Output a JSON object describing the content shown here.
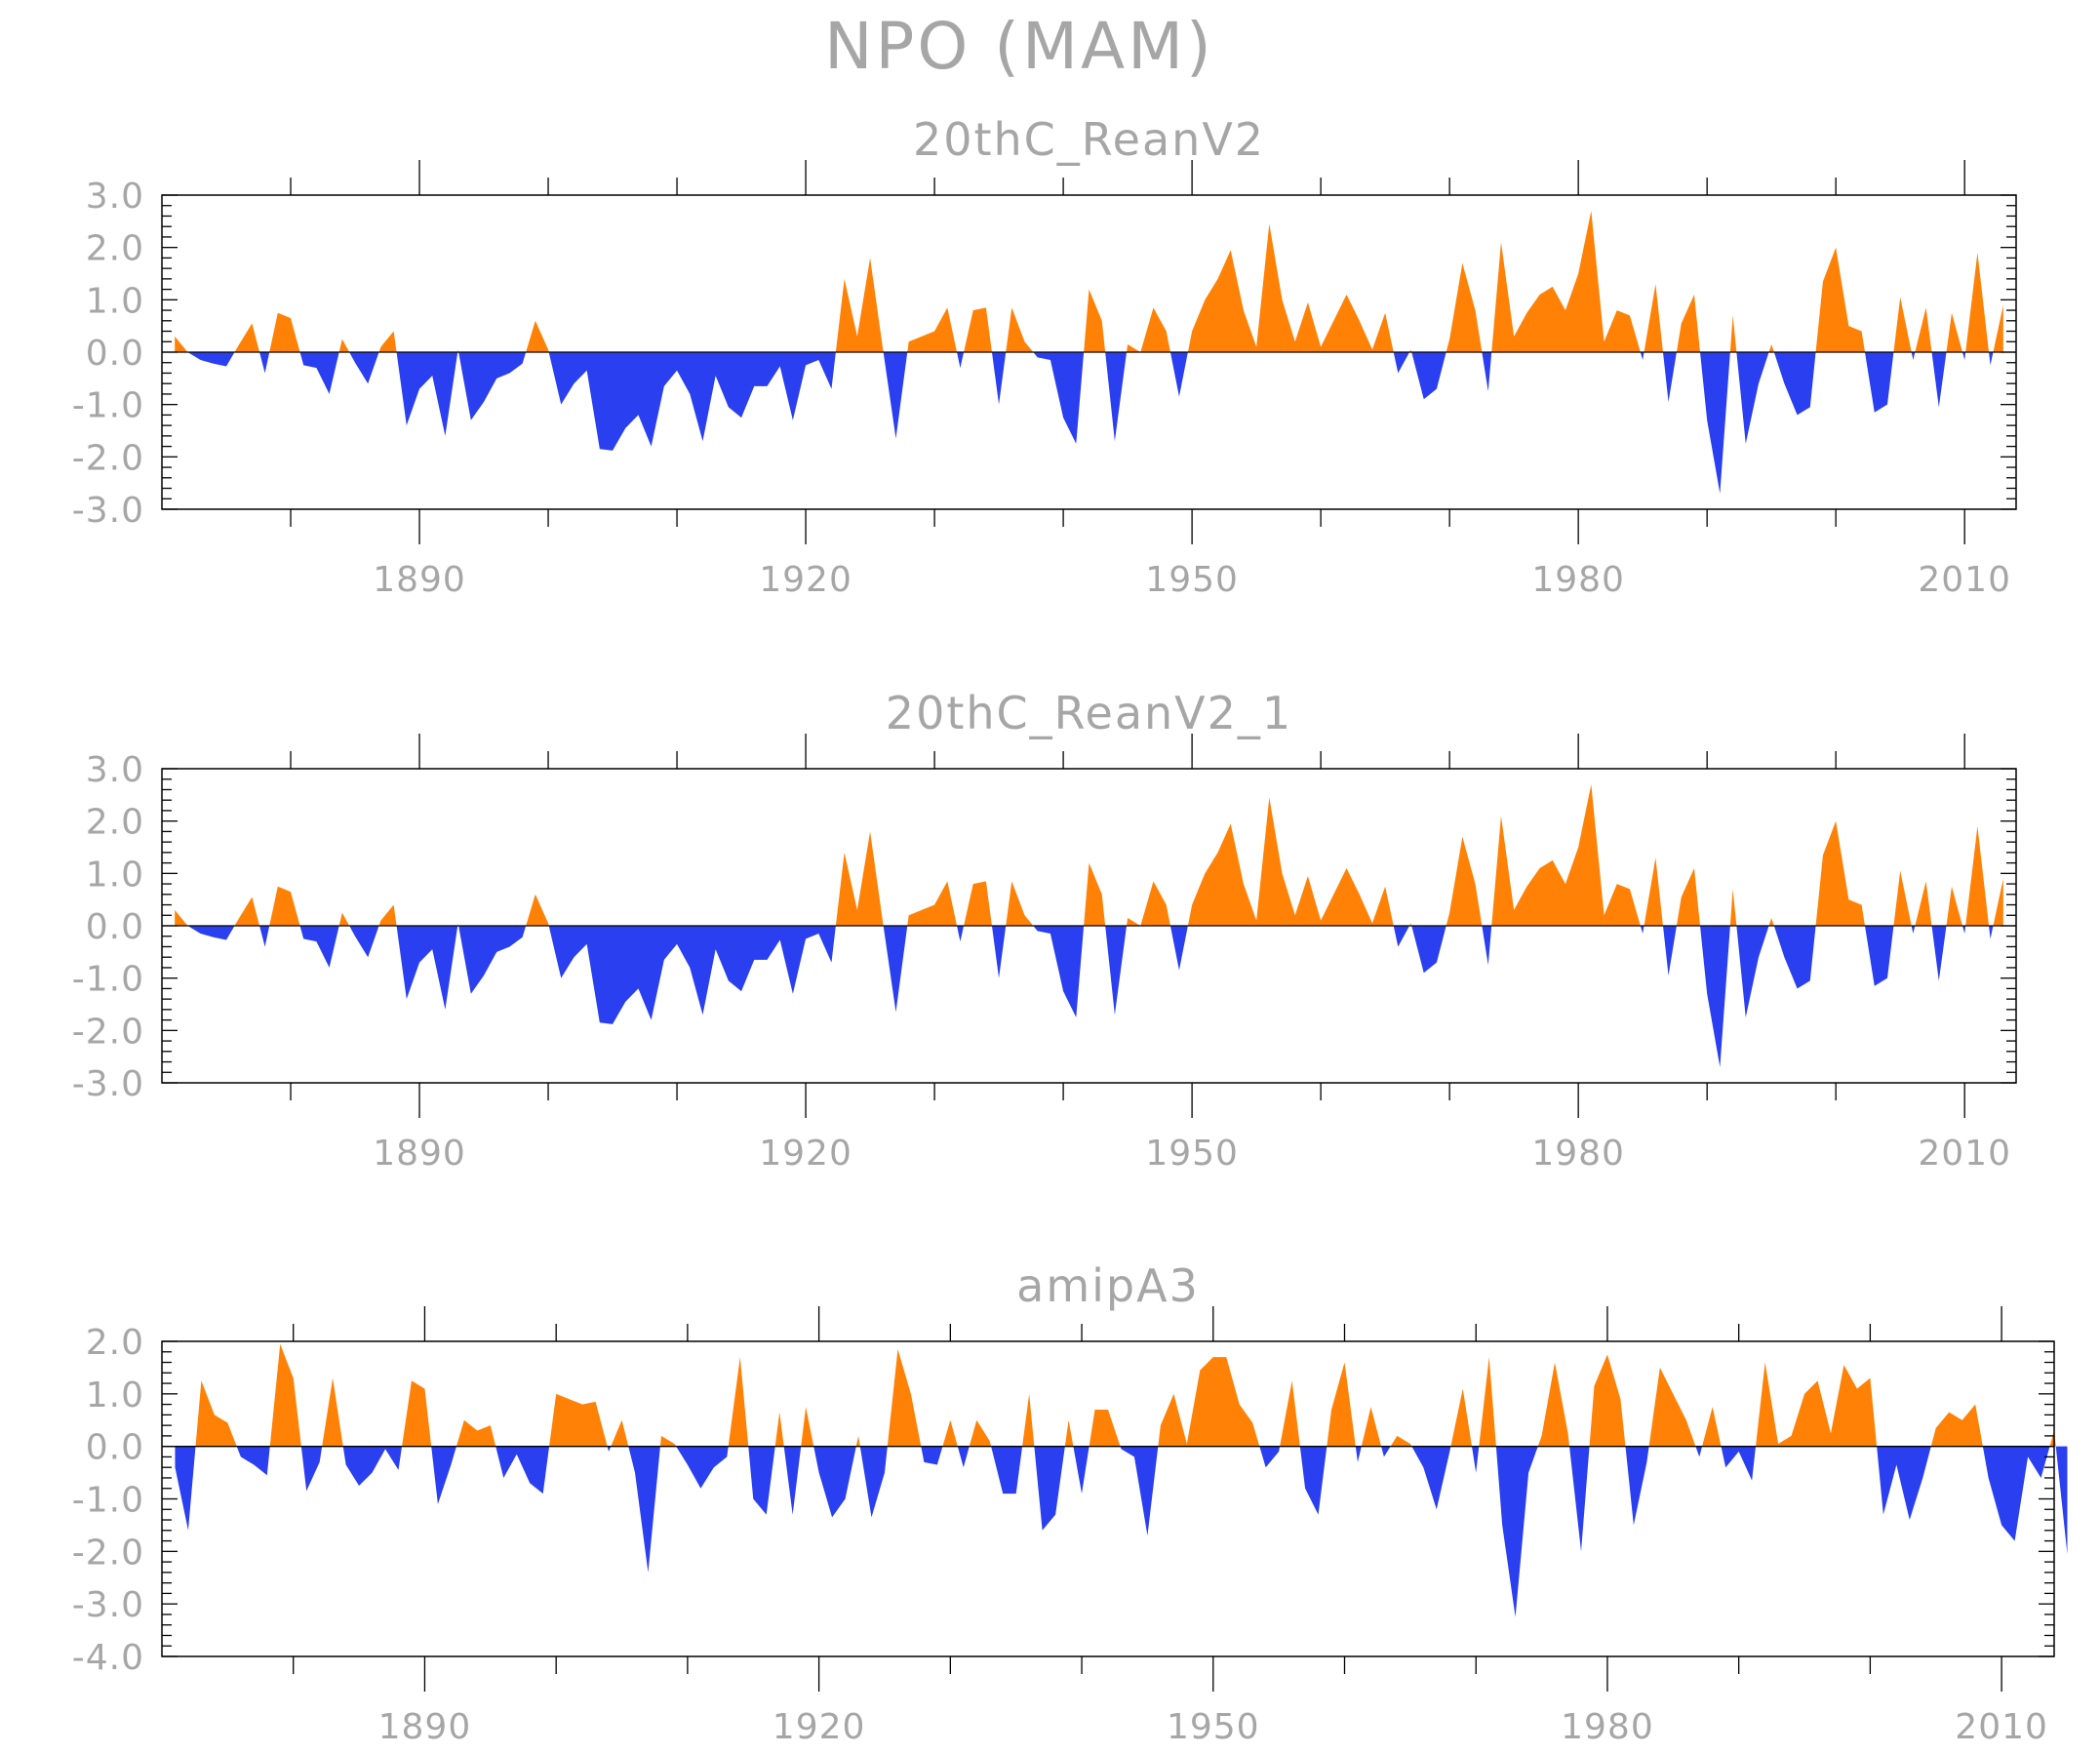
{
  "title": "NPO (MAM)",
  "colors": {
    "positive": "#ff8105",
    "negative": "#2a3ff0",
    "text": "#a6a6a6",
    "axes": "#000000"
  },
  "chart_data": [
    {
      "type": "area",
      "title": "20thC_ReanV2",
      "x_start": 1871,
      "xlim": [
        1870,
        2014
      ],
      "ylim": [
        -3,
        3
      ],
      "yticks": [
        3,
        2,
        1,
        0,
        -1,
        -2,
        -3
      ],
      "ytick_labels": [
        "3.0",
        "2.0",
        "1.0",
        "0.0",
        "-1.0",
        "-2.0",
        "-3.0"
      ],
      "xticks": [
        1890,
        1920,
        1950,
        1980,
        2010
      ],
      "xtick_labels": [
        "1890",
        "1920",
        "1950",
        "1980",
        "2010"
      ],
      "values": [
        0.3,
        0.0,
        -0.15,
        -0.22,
        -0.27,
        0.15,
        0.55,
        -0.4,
        0.75,
        0.65,
        -0.25,
        -0.3,
        -0.8,
        0.25,
        -0.2,
        -0.6,
        0.1,
        0.4,
        -1.4,
        -0.7,
        -0.45,
        -1.6,
        0.05,
        -1.3,
        -0.95,
        -0.5,
        -0.4,
        -0.22,
        0.6,
        0.05,
        -1.0,
        -0.6,
        -0.35,
        -1.85,
        -1.88,
        -1.45,
        -1.2,
        -1.8,
        -0.65,
        -0.35,
        -0.8,
        -1.7,
        -0.45,
        -1.05,
        -1.25,
        -0.65,
        -0.65,
        -0.27,
        -1.3,
        -0.25,
        -0.15,
        -0.7,
        1.4,
        0.3,
        1.8,
        0.05,
        -1.65,
        0.2,
        0.3,
        0.4,
        0.85,
        -0.3,
        0.8,
        0.85,
        -1.0,
        0.85,
        0.2,
        -0.1,
        -0.15,
        -1.25,
        -1.75,
        1.2,
        0.6,
        -1.7,
        0.15,
        0.0,
        0.85,
        0.4,
        -0.85,
        0.4,
        1.0,
        1.4,
        1.95,
        0.8,
        0.1,
        2.45,
        1.0,
        0.2,
        0.95,
        0.1,
        0.6,
        1.1,
        0.6,
        0.05,
        0.75,
        -0.4,
        0.05,
        -0.9,
        -0.7,
        0.25,
        1.7,
        0.8,
        -0.75,
        2.1,
        0.3,
        0.75,
        1.1,
        1.25,
        0.8,
        1.5,
        2.7,
        0.2,
        0.8,
        0.7,
        -0.15,
        1.3,
        -0.95,
        0.55,
        1.1,
        -1.3,
        -2.7,
        0.7,
        -1.75,
        -0.6,
        0.15,
        -0.6,
        -1.2,
        -1.05,
        1.35,
        2.0,
        0.5,
        0.4,
        -1.15,
        -1.0,
        1.05,
        -0.15,
        0.85,
        -1.05,
        0.75,
        -0.15,
        1.9,
        -0.25,
        0.9
      ]
    },
    {
      "type": "area",
      "title": "20thC_ReanV2_1",
      "x_start": 1871,
      "xlim": [
        1870,
        2014
      ],
      "ylim": [
        -3,
        3
      ],
      "yticks": [
        3,
        2,
        1,
        0,
        -1,
        -2,
        -3
      ],
      "ytick_labels": [
        "3.0",
        "2.0",
        "1.0",
        "0.0",
        "-1.0",
        "-2.0",
        "-3.0"
      ],
      "xticks": [
        1890,
        1920,
        1950,
        1980,
        2010
      ],
      "xtick_labels": [
        "1890",
        "1920",
        "1950",
        "1980",
        "2010"
      ],
      "values": [
        0.3,
        0.0,
        -0.15,
        -0.22,
        -0.27,
        0.15,
        0.55,
        -0.4,
        0.75,
        0.65,
        -0.25,
        -0.3,
        -0.8,
        0.25,
        -0.2,
        -0.6,
        0.1,
        0.4,
        -1.4,
        -0.7,
        -0.45,
        -1.6,
        0.05,
        -1.3,
        -0.95,
        -0.5,
        -0.4,
        -0.22,
        0.6,
        0.05,
        -1.0,
        -0.6,
        -0.35,
        -1.85,
        -1.88,
        -1.45,
        -1.2,
        -1.8,
        -0.65,
        -0.35,
        -0.8,
        -1.7,
        -0.45,
        -1.05,
        -1.25,
        -0.65,
        -0.65,
        -0.27,
        -1.3,
        -0.25,
        -0.15,
        -0.7,
        1.4,
        0.3,
        1.8,
        0.05,
        -1.65,
        0.2,
        0.3,
        0.4,
        0.85,
        -0.3,
        0.8,
        0.85,
        -1.0,
        0.85,
        0.2,
        -0.1,
        -0.15,
        -1.25,
        -1.75,
        1.2,
        0.6,
        -1.7,
        0.15,
        0.0,
        0.85,
        0.4,
        -0.85,
        0.4,
        1.0,
        1.4,
        1.95,
        0.8,
        0.1,
        2.45,
        1.0,
        0.2,
        0.95,
        0.1,
        0.6,
        1.1,
        0.6,
        0.05,
        0.75,
        -0.4,
        0.05,
        -0.9,
        -0.7,
        0.25,
        1.7,
        0.8,
        -0.75,
        2.1,
        0.3,
        0.75,
        1.1,
        1.25,
        0.8,
        1.5,
        2.7,
        0.2,
        0.8,
        0.7,
        -0.15,
        1.3,
        -0.95,
        0.55,
        1.1,
        -1.3,
        -2.7,
        0.7,
        -1.75,
        -0.6,
        0.15,
        -0.6,
        -1.2,
        -1.05,
        1.35,
        2.0,
        0.5,
        0.4,
        -1.15,
        -1.0,
        1.05,
        -0.15,
        0.85,
        -1.05,
        0.75,
        -0.15,
        1.9,
        -0.25,
        0.9
      ]
    },
    {
      "type": "area",
      "title": "amipA3",
      "x_start": 1871,
      "xlim": [
        1870,
        2014
      ],
      "ylim": [
        -4,
        2
      ],
      "yticks": [
        2,
        1,
        0,
        -1,
        -2,
        -3,
        -4
      ],
      "ytick_labels": [
        "2.0",
        "1.0",
        "0.0",
        "-1.0",
        "-2.0",
        "-3.0",
        "-4.0"
      ],
      "xticks": [
        1890,
        1920,
        1950,
        1980,
        2010
      ],
      "xtick_labels": [
        "1890",
        "1920",
        "1950",
        "1980",
        "2010"
      ],
      "values": [
        -0.4,
        -1.6,
        1.25,
        0.6,
        0.45,
        -0.2,
        -0.35,
        -0.55,
        1.95,
        1.3,
        -0.85,
        -0.3,
        1.3,
        -0.35,
        -0.75,
        -0.5,
        -0.05,
        -0.45,
        1.25,
        1.1,
        -1.1,
        -0.35,
        0.5,
        0.3,
        0.4,
        -0.6,
        -0.15,
        -0.7,
        -0.9,
        1.0,
        0.9,
        0.8,
        0.85,
        -0.1,
        0.5,
        -0.5,
        -2.4,
        0.2,
        0.05,
        -0.35,
        -0.8,
        -0.4,
        -0.2,
        1.7,
        -1.0,
        -1.3,
        0.65,
        -1.3,
        0.75,
        -0.5,
        -1.35,
        -1.0,
        0.2,
        -1.35,
        -0.5,
        1.85,
        1.0,
        -0.3,
        -0.35,
        0.5,
        -0.4,
        0.5,
        0.1,
        -0.9,
        -0.9,
        1.0,
        -1.6,
        -1.3,
        0.5,
        -0.9,
        0.7,
        0.7,
        -0.05,
        -0.2,
        -1.7,
        0.4,
        1.0,
        0.05,
        1.45,
        1.7,
        1.7,
        0.8,
        0.45,
        -0.4,
        -0.1,
        1.25,
        -0.8,
        -1.3,
        0.7,
        1.6,
        -0.3,
        0.75,
        -0.2,
        0.2,
        0.05,
        -0.4,
        -1.2,
        -0.1,
        1.1,
        -0.5,
        1.7,
        -1.5,
        -3.25,
        -0.5,
        0.2,
        1.6,
        0.25,
        -2.0,
        1.15,
        1.75,
        0.9,
        -1.5,
        -0.3,
        1.5,
        1.0,
        0.5,
        -0.2,
        0.75,
        -0.4,
        -0.1,
        -0.65,
        1.6,
        0.05,
        0.2,
        1.0,
        1.25,
        0.25,
        1.55,
        1.1,
        1.3,
        -1.3,
        -0.35,
        -1.4,
        -0.6,
        0.35,
        0.65,
        0.5,
        0.8,
        -0.6,
        -1.5,
        -1.8,
        -0.2,
        -0.6,
        0.3,
        -2.05
      ]
    }
  ]
}
